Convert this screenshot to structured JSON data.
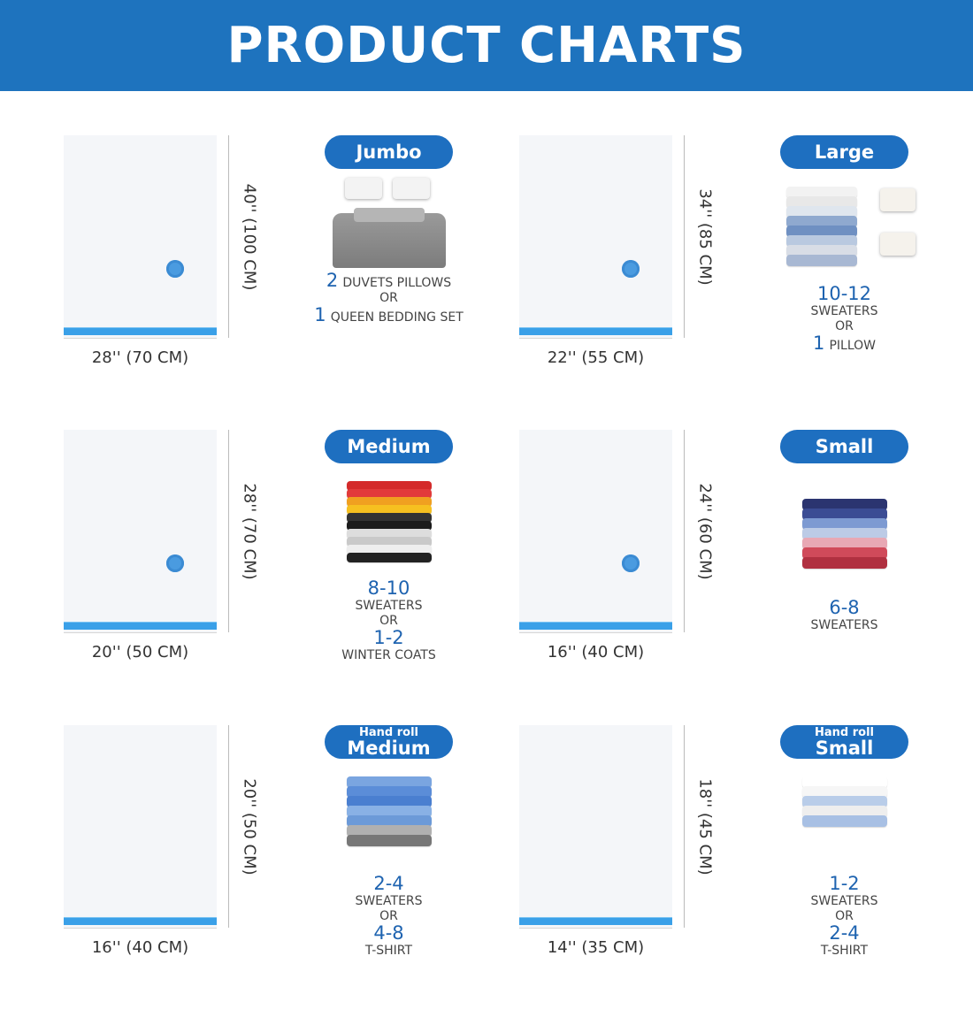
{
  "header": {
    "title": "PRODUCT CHARTS",
    "color": "#1e73be"
  },
  "items": [
    {
      "name": "Jumbo",
      "prefix": "",
      "height_label": "40'' (100 CM)",
      "width_label": "28'' (70 CM)",
      "valve": true,
      "image": "bedding-image",
      "capacity": [
        {
          "num": "2",
          "text": "DUVETS PILLOWS"
        },
        {
          "num": "",
          "text": "OR"
        },
        {
          "num": "1",
          "text": "QUEEN BEDDING SET"
        }
      ]
    },
    {
      "name": "Large",
      "prefix": "",
      "height_label": "34'' (85 CM)",
      "width_label": "22'' (55 CM)",
      "valve": true,
      "image": "sweaters-and-pillows-image",
      "capacity": [
        {
          "num": "10-12",
          "text": ""
        },
        {
          "num": "",
          "text": "SWEATERS"
        },
        {
          "num": "",
          "text": "OR"
        },
        {
          "num": "1",
          "text": "PILLOW"
        }
      ]
    },
    {
      "name": "Medium",
      "prefix": "",
      "height_label": "28'' (70 CM)",
      "width_label": "20'' (50 CM)",
      "valve": true,
      "image": "colorful-sweaters-image",
      "capacity": [
        {
          "num": "8-10",
          "text": ""
        },
        {
          "num": "",
          "text": "SWEATERS"
        },
        {
          "num": "",
          "text": "OR"
        },
        {
          "num": "1-2",
          "text": ""
        },
        {
          "num": "",
          "text": "WINTER COATS"
        }
      ]
    },
    {
      "name": "Small",
      "prefix": "",
      "height_label": "24'' (60 CM)",
      "width_label": "16'' (40 CM)",
      "valve": true,
      "image": "folded-sweaters-image",
      "capacity": [
        {
          "num": "6-8",
          "text": ""
        },
        {
          "num": "",
          "text": "SWEATERS"
        }
      ]
    },
    {
      "name": "Medium",
      "prefix": "Hand roll",
      "height_label": "20'' (50 CM)",
      "width_label": "16'' (40 CM)",
      "valve": false,
      "image": "blue-shirts-image",
      "capacity": [
        {
          "num": "2-4",
          "text": ""
        },
        {
          "num": "",
          "text": "SWEATERS"
        },
        {
          "num": "",
          "text": "OR"
        },
        {
          "num": "4-8",
          "text": ""
        },
        {
          "num": "",
          "text": "T-SHIRT"
        }
      ]
    },
    {
      "name": "Small",
      "prefix": "Hand roll",
      "height_label": "18'' (45 CM)",
      "width_label": "14'' (35 CM)",
      "valve": false,
      "image": "white-shirts-image",
      "capacity": [
        {
          "num": "1-2",
          "text": ""
        },
        {
          "num": "",
          "text": "SWEATERS"
        },
        {
          "num": "",
          "text": "OR"
        },
        {
          "num": "2-4",
          "text": ""
        },
        {
          "num": "",
          "text": "T-SHIRT"
        }
      ]
    }
  ]
}
